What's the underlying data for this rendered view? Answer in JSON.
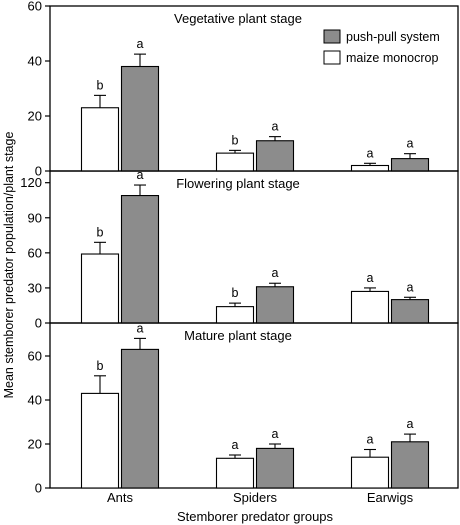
{
  "colors": {
    "push_pull": "#8c8c8c",
    "maize": "#ffffff",
    "axis": "#000000"
  },
  "chart_data": {
    "type": "bar",
    "xlabel": "Stemborer predator groups",
    "ylabel": "Mean stemborer predator population/plant stage",
    "categories": [
      "Ants",
      "Spiders",
      "Earwigs"
    ],
    "legend": {
      "placement": "top-right",
      "entries": [
        {
          "label": "push-pull system",
          "color": "#8c8c8c"
        },
        {
          "label": "maize monocrop",
          "color": "#ffffff"
        }
      ]
    },
    "panels": [
      {
        "title": "Vegetative plant stage",
        "ylim": [
          0,
          60
        ],
        "yticks": [
          0,
          20,
          40,
          60
        ],
        "series": [
          {
            "name": "maize monocrop",
            "values": [
              23,
              6.5,
              2
            ],
            "errors": [
              4.5,
              1,
              0.8
            ],
            "letters": [
              "b",
              "b",
              "a"
            ]
          },
          {
            "name": "push-pull system",
            "values": [
              38,
              11,
              4.5
            ],
            "errors": [
              4.5,
              1.5,
              1.8
            ],
            "letters": [
              "a",
              "a",
              "a"
            ]
          }
        ]
      },
      {
        "title": "Flowering plant stage",
        "ylim": [
          0,
          130
        ],
        "yticks": [
          0,
          30,
          60,
          90,
          120
        ],
        "series": [
          {
            "name": "maize monocrop",
            "values": [
              59,
              14,
              27
            ],
            "errors": [
              10,
              3,
              3
            ],
            "letters": [
              "b",
              "b",
              "a"
            ]
          },
          {
            "name": "push-pull system",
            "values": [
              109,
              31,
              20
            ],
            "errors": [
              9,
              3,
              2
            ],
            "letters": [
              "a",
              "a",
              "a"
            ]
          }
        ]
      },
      {
        "title": "Mature plant stage",
        "ylim": [
          0,
          75
        ],
        "yticks": [
          0,
          20,
          40,
          60
        ],
        "series": [
          {
            "name": "maize monocrop",
            "values": [
              43,
              13.5,
              14
            ],
            "errors": [
              8,
              1.5,
              3.5
            ],
            "letters": [
              "b",
              "a",
              "a"
            ]
          },
          {
            "name": "push-pull system",
            "values": [
              63,
              18,
              21
            ],
            "errors": [
              5,
              2,
              3.5
            ],
            "letters": [
              "a",
              "a",
              "a"
            ]
          }
        ]
      }
    ]
  }
}
